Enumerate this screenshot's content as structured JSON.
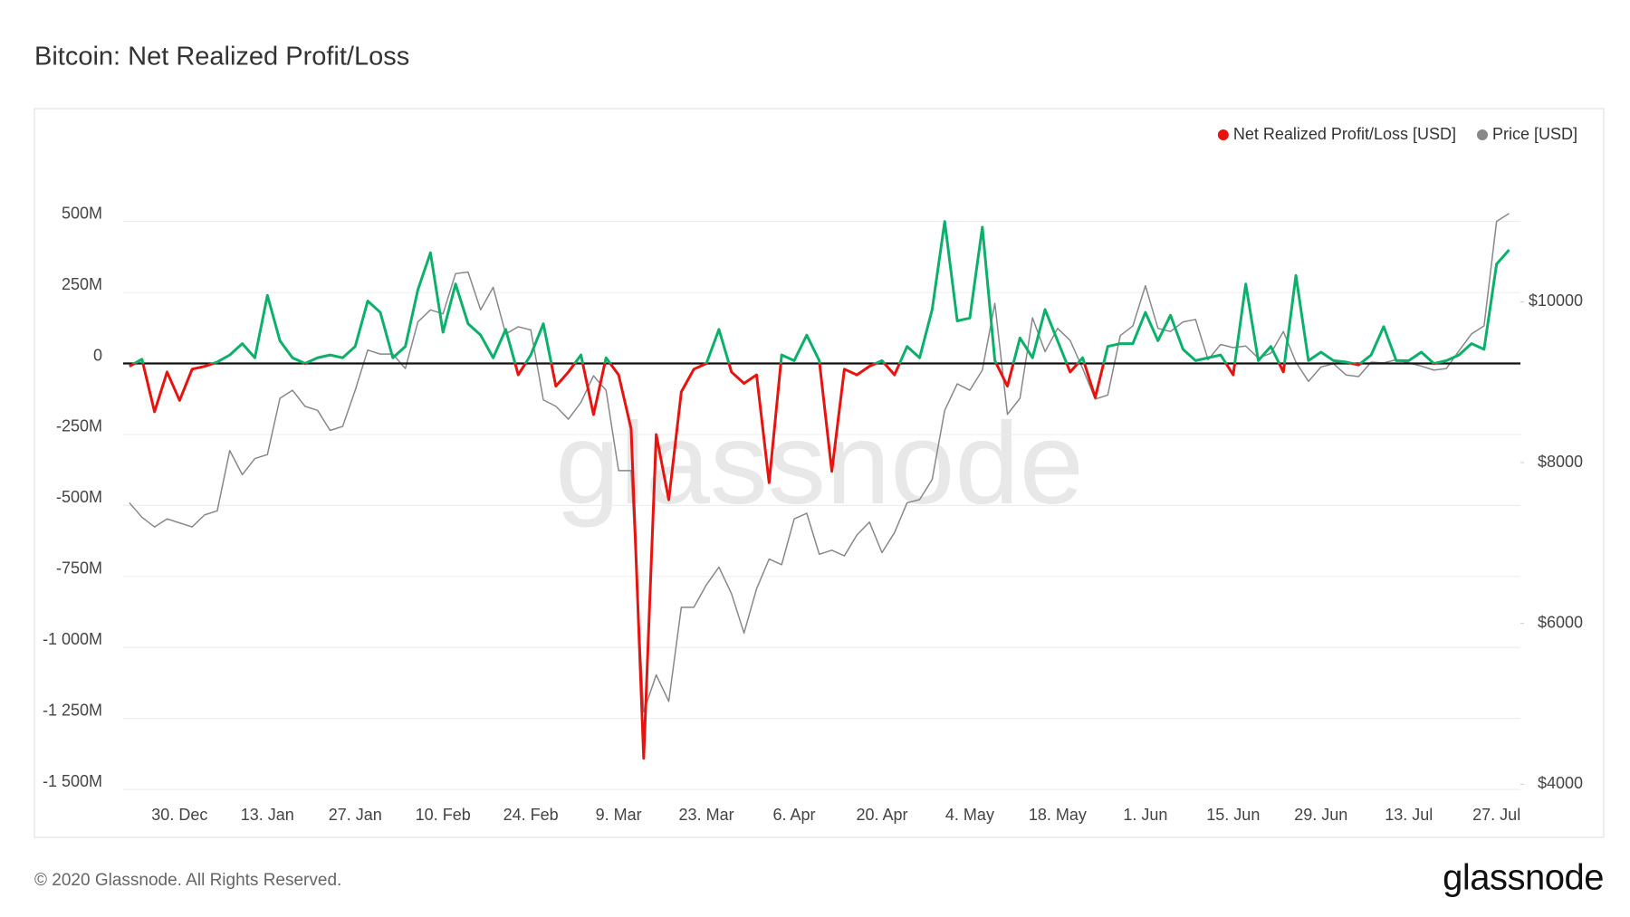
{
  "chart_data": {
    "type": "line",
    "title": "Bitcoin: Net Realized Profit/Loss",
    "watermark": "glassnode",
    "categories": [
      null,
      null,
      null,
      null,
      "30. Dec",
      null,
      null,
      null,
      null,
      null,
      null,
      "13. Jan",
      null,
      null,
      null,
      null,
      null,
      null,
      "27. Jan",
      null,
      null,
      null,
      null,
      null,
      null,
      "10. Feb",
      null,
      null,
      null,
      null,
      null,
      null,
      "24. Feb",
      null,
      null,
      null,
      null,
      null,
      null,
      "9. Mar",
      null,
      null,
      null,
      null,
      null,
      null,
      "23. Mar",
      null,
      null,
      null,
      null,
      null,
      null,
      "6. Apr",
      null,
      null,
      null,
      null,
      null,
      null,
      "20. Apr",
      null,
      null,
      null,
      null,
      null,
      null,
      "4. May",
      null,
      null,
      null,
      null,
      null,
      null,
      "18. May",
      null,
      null,
      null,
      null,
      null,
      null,
      "1. Jun",
      null,
      null,
      null,
      null,
      null,
      null,
      "15. Jun",
      null,
      null,
      null,
      null,
      null,
      null,
      "29. Jun",
      null,
      null,
      null,
      null,
      null,
      null,
      "13. Jul",
      null,
      null,
      null,
      null,
      null,
      null,
      "27. Jul",
      null
    ],
    "series": [
      {
        "name": "Net Realized Profit/Loss [USD]",
        "color": "#e8130f",
        "positive_color": "#0bb16a",
        "values": [
          -10,
          15,
          -170,
          -30,
          -130,
          -20,
          -10,
          5,
          30,
          70,
          20,
          240,
          80,
          20,
          0,
          20,
          30,
          20,
          60,
          220,
          180,
          20,
          60,
          260,
          390,
          110,
          280,
          140,
          100,
          20,
          120,
          -40,
          30,
          140,
          -80,
          -30,
          30,
          -180,
          20,
          -40,
          -230,
          -1390,
          -250,
          -480,
          -100,
          -20,
          0,
          120,
          -30,
          -70,
          -40,
          -420,
          30,
          10,
          100,
          10,
          -380,
          -20,
          -40,
          -10,
          10,
          -40,
          60,
          20,
          190,
          500,
          150,
          160,
          480,
          10,
          -80,
          90,
          20,
          190,
          80,
          -30,
          20,
          -120,
          60,
          70,
          70,
          180,
          80,
          170,
          50,
          10,
          20,
          30,
          -40,
          280,
          10,
          60,
          -30,
          310,
          10,
          40,
          10,
          5,
          -5,
          30,
          130,
          10,
          10,
          40,
          0,
          10,
          30,
          70,
          50,
          350,
          400
        ]
      },
      {
        "name": "Price [USD]",
        "color": "#888888",
        "axis": "y2",
        "values": [
          7500,
          7320,
          7200,
          7300,
          7250,
          7200,
          7350,
          7400,
          8150,
          7850,
          8050,
          8100,
          8800,
          8900,
          8700,
          8650,
          8400,
          8450,
          8900,
          9400,
          9350,
          9350,
          9170,
          9750,
          9900,
          9850,
          10350,
          10370,
          9900,
          10180,
          9600,
          9690,
          9650,
          8780,
          8700,
          8540,
          8750,
          9080,
          8900,
          7900,
          7900,
          4900,
          5360,
          5030,
          6200,
          6200,
          6480,
          6700,
          6370,
          5880,
          6430,
          6800,
          6730,
          7300,
          7370,
          6860,
          6910,
          6840,
          7100,
          7260,
          6880,
          7130,
          7500,
          7540,
          7790,
          8650,
          8980,
          8900,
          9150,
          9980,
          8600,
          8800,
          9800,
          9380,
          9670,
          9520,
          9170,
          8790,
          8840,
          9580,
          9700,
          10200,
          9670,
          9630,
          9750,
          9780,
          9280,
          9470,
          9430,
          9450,
          9300,
          9360,
          9630,
          9250,
          9010,
          9190,
          9230,
          9090,
          9070,
          9250,
          9240,
          9280,
          9240,
          9200,
          9150,
          9170,
          9390,
          9600,
          9700,
          11000,
          11100
        ]
      }
    ],
    "ylim": [
      -1522,
      754
    ],
    "yticks": [
      {
        "value": -1500,
        "label": "-1 500M"
      },
      {
        "value": -1250,
        "label": "-1 250M"
      },
      {
        "value": -1000,
        "label": "-1 000M"
      },
      {
        "value": -750,
        "label": "-750M"
      },
      {
        "value": -500,
        "label": "-500M"
      },
      {
        "value": -250,
        "label": "-250M"
      },
      0,
      {
        "value": 250,
        "label": "250M"
      },
      {
        "value": 500,
        "label": "500M"
      }
    ],
    "y2lim": [
      3857,
      11896
    ],
    "y2ticks": [
      {
        "value": 4000,
        "label": "$4000"
      },
      {
        "value": 6000,
        "label": "$6000"
      },
      {
        "value": 8000,
        "label": "$8000"
      },
      {
        "value": 10000,
        "label": "$10000"
      }
    ],
    "grid": true,
    "legend": "top-right"
  },
  "footer": {
    "copyright": "© 2020 Glassnode. All Rights Reserved.",
    "logo": "glassnode"
  }
}
